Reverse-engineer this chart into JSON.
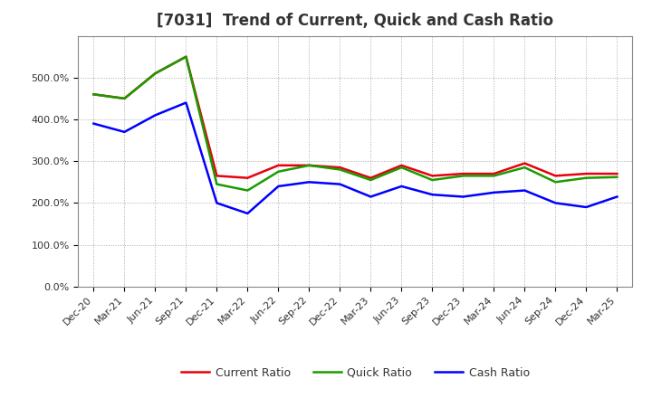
{
  "title": "[7031]  Trend of Current, Quick and Cash Ratio",
  "x_labels": [
    "Dec-20",
    "Mar-21",
    "Jun-21",
    "Sep-21",
    "Dec-21",
    "Mar-22",
    "Jun-22",
    "Sep-22",
    "Dec-22",
    "Mar-23",
    "Jun-23",
    "Sep-23",
    "Dec-23",
    "Mar-24",
    "Jun-24",
    "Sep-24",
    "Dec-24",
    "Mar-25"
  ],
  "current_ratio": [
    4.6,
    4.5,
    5.1,
    5.5,
    2.65,
    2.6,
    2.9,
    2.9,
    2.85,
    2.6,
    2.9,
    2.65,
    2.7,
    2.7,
    2.95,
    2.65,
    2.7,
    2.7
  ],
  "quick_ratio": [
    4.6,
    4.5,
    5.1,
    5.5,
    2.45,
    2.3,
    2.75,
    2.9,
    2.8,
    2.55,
    2.85,
    2.55,
    2.65,
    2.65,
    2.85,
    2.5,
    2.6,
    2.62
  ],
  "cash_ratio": [
    3.9,
    3.7,
    4.1,
    4.4,
    2.0,
    1.75,
    2.4,
    2.5,
    2.45,
    2.15,
    2.4,
    2.2,
    2.15,
    2.25,
    2.3,
    2.0,
    1.9,
    2.15
  ],
  "current_color": "#e8000d",
  "quick_color": "#1a9c00",
  "cash_color": "#0000ff",
  "line_width": 1.8,
  "ylim": [
    0.0,
    6.0
  ],
  "yticks": [
    0.0,
    1.0,
    2.0,
    3.0,
    4.0,
    5.0
  ],
  "ytick_labels": [
    "0.0%",
    "100.0%",
    "200.0%",
    "300.0%",
    "400.0%",
    "500.0%"
  ],
  "background_color": "#ffffff",
  "plot_bg_color": "#ffffff",
  "grid_color": "#aaaaaa",
  "title_fontsize": 12,
  "tick_fontsize": 8,
  "legend_fontsize": 9,
  "title_color": "#333333"
}
